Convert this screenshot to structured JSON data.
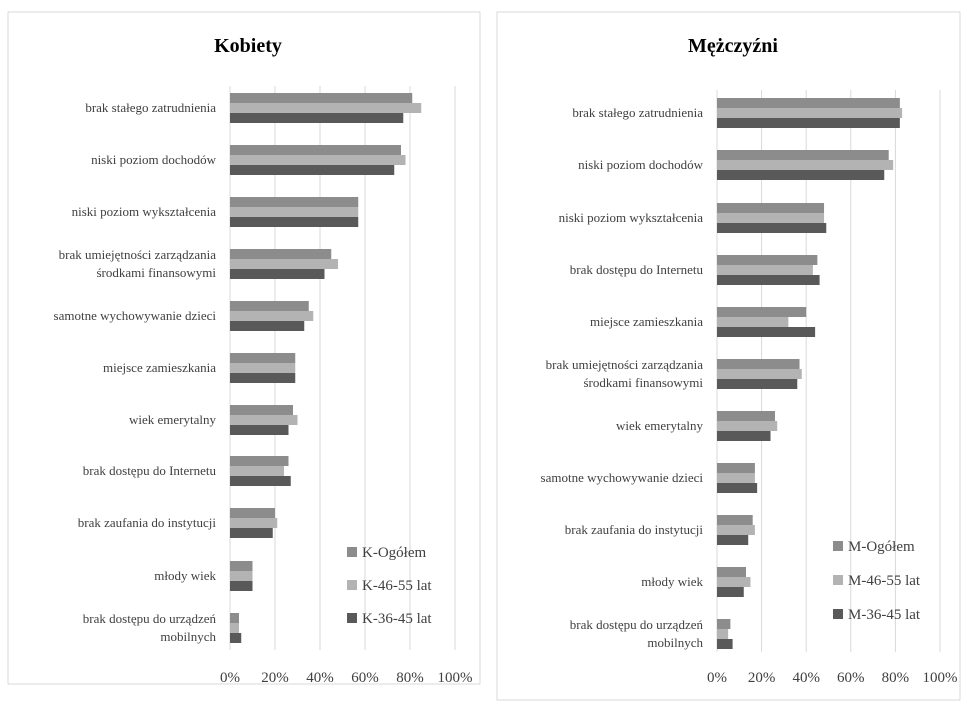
{
  "colors": {
    "ogolem": "#8c8c8c",
    "age_46_55": "#b3b3b3",
    "age_36_45": "#595959"
  },
  "chart_data": [
    {
      "type": "bar",
      "orientation": "horizontal",
      "title": "Kobiety",
      "categories": [
        [
          "brak stałego zatrudnienia"
        ],
        [
          "niski poziom dochodów"
        ],
        [
          "niski poziom wykształcenia"
        ],
        [
          "brak umiejętności zarządzania",
          "środkami finansowymi"
        ],
        [
          "samotne wychowywanie dzieci"
        ],
        [
          "miejsce zamieszkania"
        ],
        [
          "wiek emerytalny"
        ],
        [
          "brak dostępu do Internetu"
        ],
        [
          "brak zaufania do instytucji"
        ],
        [
          "młody wiek"
        ],
        [
          "brak dostępu do urządzeń",
          "mobilnych"
        ]
      ],
      "series": [
        {
          "name": "K-Ogółem",
          "color_key": "ogolem",
          "values": [
            81,
            76,
            57,
            45,
            35,
            29,
            28,
            26,
            20,
            10,
            4
          ]
        },
        {
          "name": "K-46-55 lat",
          "color_key": "age_46_55",
          "values": [
            85,
            78,
            57,
            48,
            37,
            29,
            30,
            24,
            21,
            10,
            4
          ]
        },
        {
          "name": "K-36-45 lat",
          "color_key": "age_36_45",
          "values": [
            77,
            73,
            57,
            42,
            33,
            29,
            26,
            27,
            19,
            10,
            5
          ]
        }
      ],
      "xlim": [
        0,
        100
      ],
      "ticks": [
        "0%",
        "20%",
        "40%",
        "60%",
        "80%",
        "100%"
      ],
      "grid": true,
      "legend_position": "bottom-right"
    },
    {
      "type": "bar",
      "orientation": "horizontal",
      "title": "Mężczyźni",
      "categories": [
        [
          "brak stałego zatrudnienia"
        ],
        [
          "niski poziom dochodów"
        ],
        [
          "niski poziom wykształcenia"
        ],
        [
          "brak dostępu do Internetu"
        ],
        [
          "miejsce zamieszkania"
        ],
        [
          "brak umiejętności zarządzania",
          "środkami finansowymi"
        ],
        [
          "wiek emerytalny"
        ],
        [
          "samotne wychowywanie dzieci"
        ],
        [
          "brak zaufania do instytucji"
        ],
        [
          "młody wiek"
        ],
        [
          "brak dostępu do urządzeń",
          "mobilnych"
        ]
      ],
      "series": [
        {
          "name": "M-Ogółem",
          "color_key": "ogolem",
          "values": [
            82,
            77,
            48,
            45,
            40,
            37,
            26,
            17,
            16,
            13,
            6
          ]
        },
        {
          "name": "M-46-55 lat",
          "color_key": "age_46_55",
          "values": [
            83,
            79,
            48,
            43,
            32,
            38,
            27,
            17,
            17,
            15,
            5
          ]
        },
        {
          "name": "M-36-45 lat",
          "color_key": "age_36_45",
          "values": [
            82,
            75,
            49,
            46,
            44,
            36,
            24,
            18,
            14,
            12,
            7
          ]
        }
      ],
      "xlim": [
        0,
        100
      ],
      "ticks": [
        "0%",
        "20%",
        "40%",
        "60%",
        "80%",
        "100%"
      ],
      "grid": true,
      "legend_position": "bottom-right"
    }
  ]
}
